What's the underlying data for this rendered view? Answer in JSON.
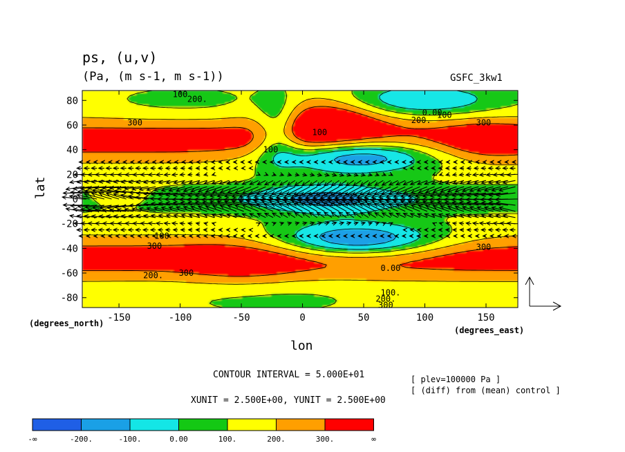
{
  "chart_data": {
    "type": "heatmap",
    "title": "ps, (u,v)",
    "subtitle": "(Pa, (m s-1, m s-1))",
    "model_label": "GSFC_3kw1",
    "xlabel": "lon",
    "ylabel": "lat",
    "x_unit_label": "(degrees_east)",
    "y_unit_label": "(degrees_north)",
    "xlim": [
      -180,
      176
    ],
    "ylim": [
      -88,
      88
    ],
    "x_ticks": [
      -150,
      -100,
      -50,
      0,
      50,
      100,
      150
    ],
    "y_ticks": [
      80,
      60,
      40,
      20,
      0,
      -20,
      -40,
      -60,
      -80
    ],
    "contour_interval_text": "CONTOUR INTERVAL = 5.000E+01",
    "vector_unit_text": "XUNIT = 2.500E+00, YUNIT = 2.500E+00",
    "plev_text": "[ plev=100000 Pa ]",
    "diff_text": "[ (diff) from (mean) control ]",
    "contour_levels": [
      -200,
      -100,
      0,
      100,
      200,
      300
    ],
    "contour_labels": [
      {
        "text": "100",
        "lon": -100,
        "lat": 85
      },
      {
        "text": "200.",
        "lon": -86,
        "lat": 81
      },
      {
        "text": "300",
        "lon": -137,
        "lat": 62
      },
      {
        "text": "100",
        "lon": -115,
        "lat": -30
      },
      {
        "text": "300",
        "lon": -121,
        "lat": -38
      },
      {
        "text": "200.",
        "lon": -122,
        "lat": -62
      },
      {
        "text": "300",
        "lon": -95,
        "lat": -60
      },
      {
        "text": "100",
        "lon": -26,
        "lat": 40
      },
      {
        "text": "100",
        "lon": 14,
        "lat": 54
      },
      {
        "text": "0.00",
        "lon": 106,
        "lat": 70
      },
      {
        "text": "100",
        "lon": 116,
        "lat": 68
      },
      {
        "text": "200.",
        "lon": 97,
        "lat": 64
      },
      {
        "text": "300",
        "lon": 148,
        "lat": 62
      },
      {
        "text": "300",
        "lon": 148,
        "lat": -39
      },
      {
        "text": "0.00",
        "lon": 72,
        "lat": -56
      },
      {
        "text": "100.",
        "lon": 72,
        "lat": -76
      },
      {
        "text": "200.",
        "lon": 68,
        "lat": -81
      },
      {
        "text": "300",
        "lon": 68,
        "lat": -86
      }
    ],
    "colorbar": {
      "colors": [
        "#1f5fe6",
        "#1aa0e6",
        "#14e6e6",
        "#14c814",
        "#ffff00",
        "#ff9f00",
        "#ff0000"
      ],
      "labels": [
        "-∞",
        "-200.",
        "-100.",
        "0.00",
        "100.",
        "200.",
        "300.",
        "∞"
      ]
    },
    "palette": {
      "contour": "#000000",
      "vector": "#000000"
    }
  }
}
